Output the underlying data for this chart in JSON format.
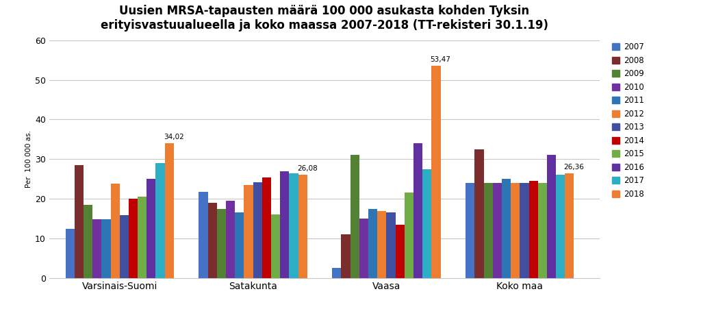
{
  "title": "Uusien MRSA-tapausten määrä 100 000 asukasta kohden Tyksin\nerityisvastuualueella ja koko maassa 2007-2018 (TT-rekisteri 30.1.19)",
  "ylabel": "Per  100 000 as.",
  "categories": [
    "Varsinais-Suomi",
    "Satakunta",
    "Vaasa",
    "Koko maa"
  ],
  "years": [
    "2007",
    "2008",
    "2009",
    "2010",
    "2011",
    "2012",
    "2013",
    "2014",
    "2015",
    "2016",
    "2017",
    "2018"
  ],
  "bar_colors_list": [
    "#4472C4",
    "#7B2C2C",
    "#548235",
    "#7030A0",
    "#2E75B6",
    "#ED7D31",
    "#404FA0",
    "#C00000",
    "#70AD47",
    "#6030A0",
    "#2EAEC4",
    "#ED7D31"
  ],
  "data": {
    "Varsinais-Suomi": [
      12.5,
      28.5,
      18.5,
      14.8,
      14.8,
      23.8,
      15.8,
      20.0,
      20.5,
      25.0,
      29.0,
      34.02
    ],
    "Satakunta": [
      21.8,
      19.0,
      17.5,
      19.5,
      16.5,
      23.5,
      24.2,
      25.3,
      16.0,
      27.0,
      26.5,
      26.08
    ],
    "Vaasa": [
      2.5,
      11.0,
      31.0,
      15.0,
      17.5,
      17.0,
      16.5,
      13.5,
      21.5,
      34.0,
      27.5,
      53.47
    ],
    "Koko maa": [
      24.0,
      32.5,
      24.0,
      24.0,
      25.0,
      24.0,
      24.0,
      24.5,
      24.0,
      31.0,
      26.0,
      26.36
    ]
  },
  "annotated": {
    "Varsinais-Suomi": {
      "year": "2018",
      "value": "34,02"
    },
    "Satakunta": {
      "year": "2018",
      "value": "26,08"
    },
    "Vaasa": {
      "year": "2018",
      "value": "53,47"
    },
    "Koko maa": {
      "year": "2018",
      "value": "26,36"
    }
  },
  "ylim": [
    0,
    60
  ],
  "yticks": [
    0,
    10,
    20,
    30,
    40,
    50,
    60
  ],
  "background_color": "#FFFFFF",
  "grid_color": "#C8C8C8"
}
